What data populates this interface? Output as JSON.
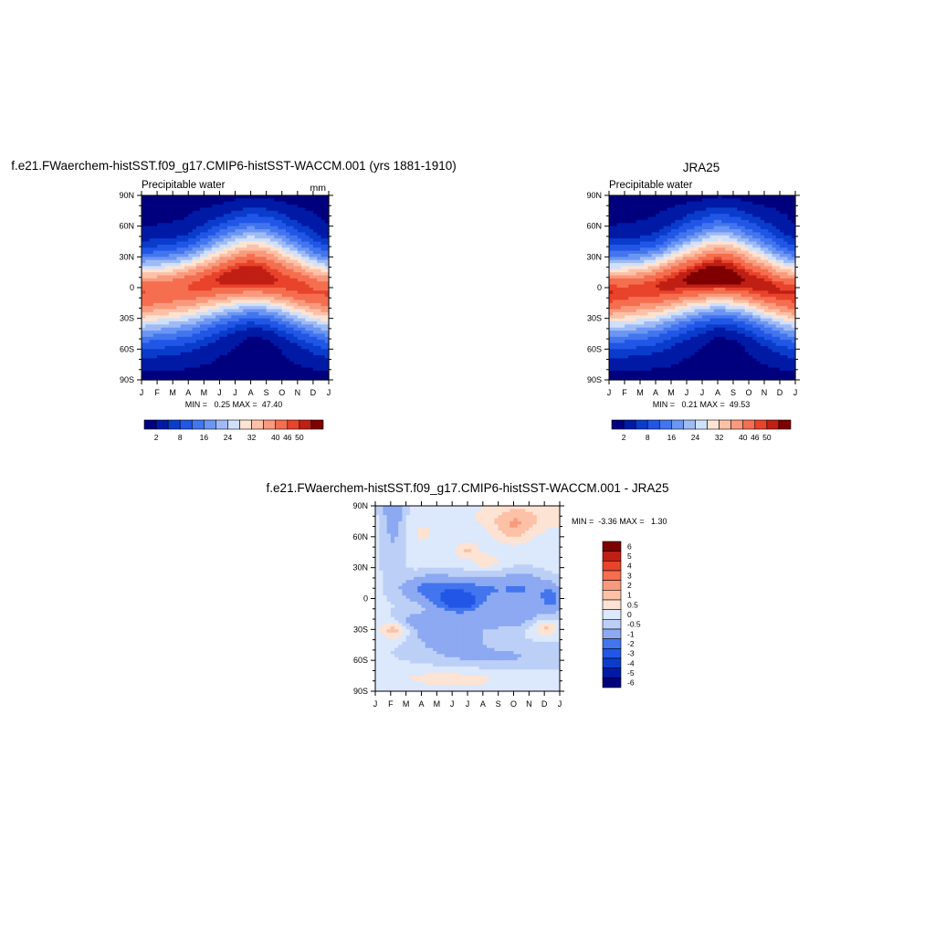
{
  "chart_data": [
    {
      "type": "heatmap",
      "title": "f.e21.FWaerchem-histSST.f09_g17.CMIP6-histSST-WACCM.001 (yrs 1881-1910)",
      "left_label": "Precipitable water",
      "right_label": "mm",
      "x_ticks": [
        "J",
        "F",
        "M",
        "A",
        "M",
        "J",
        "J",
        "A",
        "S",
        "O",
        "N",
        "D",
        "J"
      ],
      "y_ticks": [
        "90N",
        "60N",
        "30N",
        "0",
        "30S",
        "60S",
        "90S"
      ],
      "minmax": "MIN =   0.25 MAX =  47.40",
      "min": 0.25,
      "max": 47.4,
      "colorbar_labels": [
        "2",
        "8",
        "16",
        "24",
        "32",
        "40",
        "46",
        "50"
      ],
      "peak_lat_by_month": [
        -5,
        -4,
        -2,
        1,
        4,
        7,
        9,
        10,
        8,
        5,
        1,
        -3,
        -5
      ],
      "equator_value_by_month": [
        44,
        43,
        43,
        44,
        45,
        46,
        47,
        47,
        46,
        45,
        45,
        44,
        44
      ]
    },
    {
      "type": "heatmap",
      "title": "JRA25",
      "left_label": "Precipitable water",
      "right_label": "",
      "x_ticks": [
        "J",
        "F",
        "M",
        "A",
        "M",
        "J",
        "J",
        "A",
        "S",
        "O",
        "N",
        "D",
        "J"
      ],
      "y_ticks": [
        "90N",
        "60N",
        "30N",
        "0",
        "30S",
        "60S",
        "90S"
      ],
      "minmax": "MIN =   0.21 MAX =  49.53",
      "min": 0.21,
      "max": 49.53,
      "colorbar_labels": [
        "2",
        "8",
        "16",
        "24",
        "32",
        "40",
        "46",
        "50"
      ],
      "peak_lat_by_month": [
        -5,
        -4,
        -2,
        1,
        4,
        7,
        9,
        10,
        8,
        5,
        1,
        -3,
        -5
      ],
      "equator_value_by_month": [
        46,
        45,
        45,
        46,
        47,
        48,
        49,
        49,
        48,
        47,
        47,
        46,
        46
      ]
    },
    {
      "type": "heatmap",
      "title": "f.e21.FWaerchem-histSST.f09_g17.CMIP6-histSST-WACCM.001 - JRA25",
      "x_ticks": [
        "J",
        "F",
        "M",
        "A",
        "M",
        "J",
        "J",
        "A",
        "S",
        "O",
        "N",
        "D",
        "J"
      ],
      "y_ticks": [
        "90N",
        "60N",
        "30N",
        "0",
        "30S",
        "60S",
        "90S"
      ],
      "minmax": "MIN =  -3.36 MAX =   1.30",
      "min": -3.36,
      "max": 1.3,
      "colorbar_labels": [
        "6",
        "5",
        "4",
        "3",
        "2",
        "1",
        "0.5",
        "0",
        "-0.5",
        "-1",
        "-2",
        "-3",
        "-4",
        "-5",
        "-6"
      ]
    }
  ],
  "colors": {
    "mean_fills": [
      "#00007f",
      "#001aa6",
      "#0a3ccc",
      "#2156e6",
      "#4275ee",
      "#6b96f3",
      "#9fbaf5",
      "#cfe0fa",
      "#fde3d3",
      "#fcc1a7",
      "#f99a7d",
      "#f56e4f",
      "#e8432b",
      "#c01f14",
      "#7f0000"
    ],
    "diff_fills": [
      "#00007f",
      "#001aa6",
      "#0a3ccc",
      "#2156e6",
      "#4275ee",
      "#8ca9f2",
      "#bcd0f7",
      "#dce8fb",
      "#fde3d3",
      "#fcc1a7",
      "#f99a7d",
      "#f56e4f",
      "#e8432b",
      "#c01f14",
      "#7f0000"
    ]
  }
}
